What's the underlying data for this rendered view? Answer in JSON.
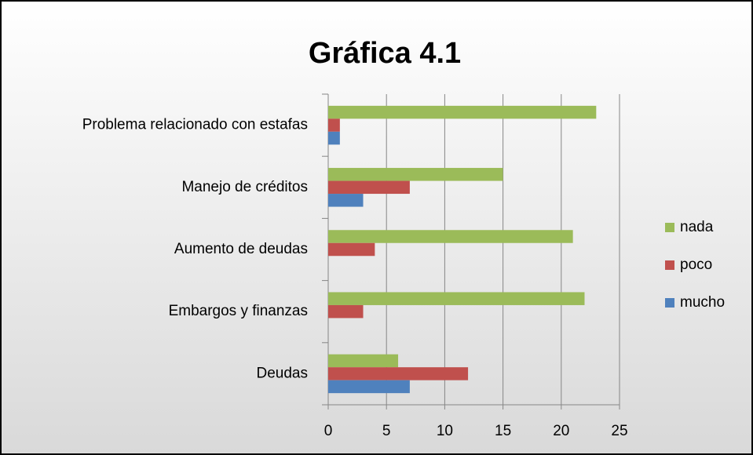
{
  "chart_data": {
    "type": "barh",
    "title": "Gráfica 4.1",
    "categories": [
      "Deudas",
      "Embargos y finanzas",
      "Aumento de deudas",
      "Manejo de créditos",
      "Problema relacionado con estafas"
    ],
    "series": [
      {
        "name": "nada",
        "color": "#9bbb59",
        "values": [
          6,
          22,
          21,
          15,
          23
        ]
      },
      {
        "name": "poco",
        "color": "#c0504d",
        "values": [
          12,
          3,
          4,
          7,
          1
        ]
      },
      {
        "name": "mucho",
        "color": "#4f81bd",
        "values": [
          7,
          0,
          0,
          3,
          1
        ]
      }
    ],
    "xlim": [
      0,
      25
    ],
    "xticks": [
      0,
      5,
      10,
      15,
      20,
      25
    ],
    "grid": true,
    "legend": "right"
  }
}
